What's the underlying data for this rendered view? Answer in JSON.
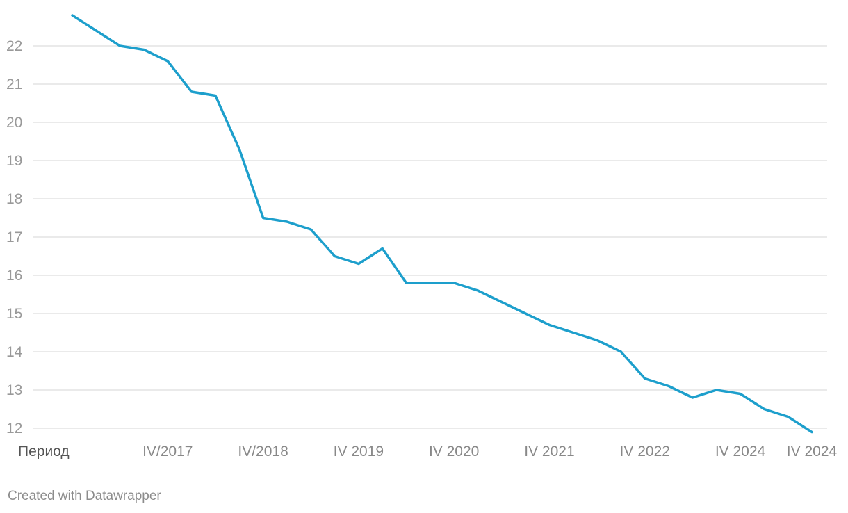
{
  "chart_data": {
    "type": "line",
    "title": "",
    "xlabel": "",
    "ylabel": "",
    "ylim": [
      12,
      22.8
    ],
    "yticks": [
      12,
      13,
      14,
      15,
      16,
      17,
      18,
      19,
      20,
      21,
      22
    ],
    "grid": true,
    "legend": "none",
    "x_axis_labels": [
      {
        "label": "Период",
        "index": 0
      },
      {
        "label": "IV/2017",
        "index": 4
      },
      {
        "label": "IV/2018",
        "index": 8
      },
      {
        "label": "IV 2019",
        "index": 12
      },
      {
        "label": "IV 2020",
        "index": 16
      },
      {
        "label": "IV 2021",
        "index": 20
      },
      {
        "label": "IV 2022",
        "index": 24
      },
      {
        "label": "IV 2024",
        "index": 28
      },
      {
        "label": "IV 2024",
        "index": 32
      }
    ],
    "series": [
      {
        "name": "",
        "color": "#1d9fcc",
        "values": [
          22.8,
          22.4,
          22.0,
          21.9,
          21.6,
          20.8,
          20.7,
          19.3,
          17.5,
          17.4,
          17.2,
          16.5,
          16.3,
          16.7,
          15.8,
          15.8,
          15.8,
          15.6,
          15.3,
          15.0,
          14.7,
          14.5,
          14.3,
          14.0,
          13.3,
          13.1,
          12.8,
          13.0,
          12.9,
          12.5,
          12.3,
          11.9
        ]
      }
    ]
  },
  "footer": {
    "credit": "Created with Datawrapper"
  }
}
